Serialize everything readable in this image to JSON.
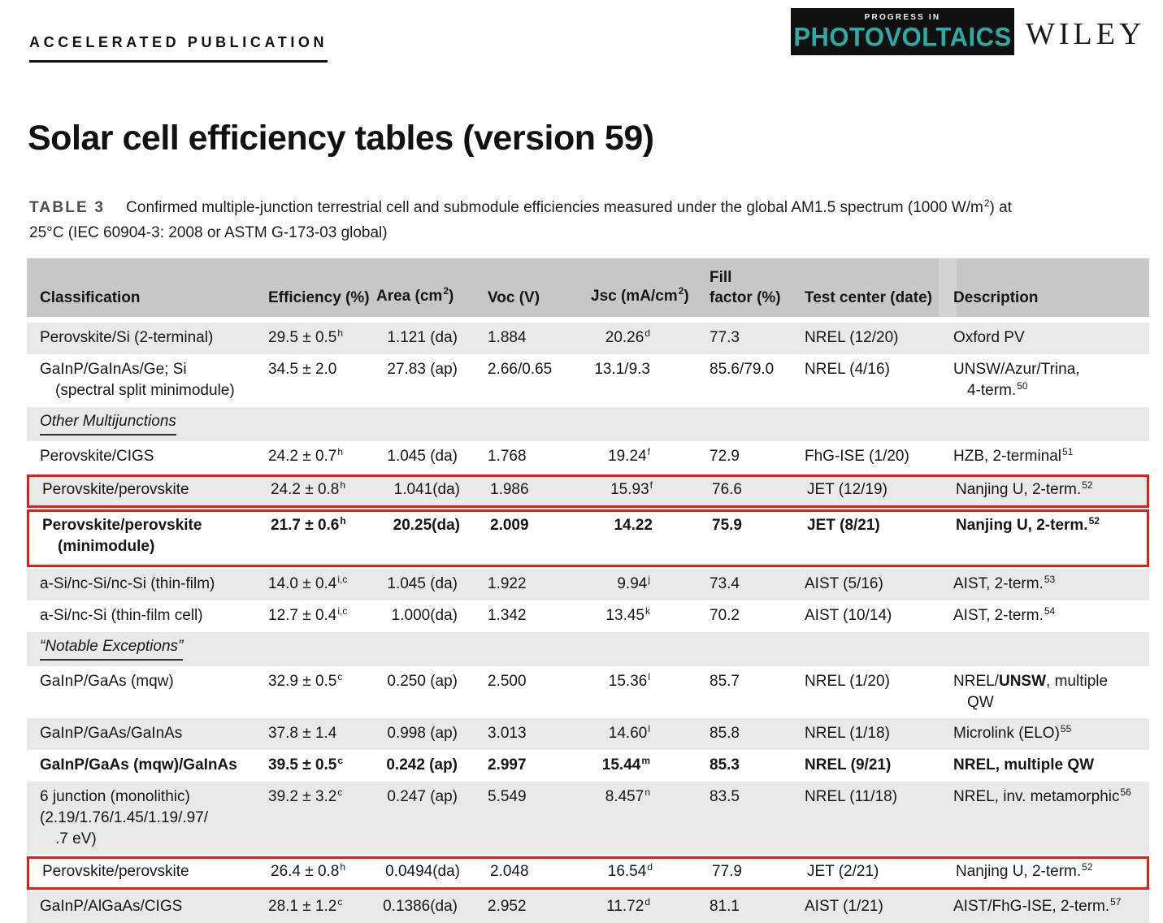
{
  "header": {
    "kicker": "ACCELERATED PUBLICATION",
    "journal_logo": {
      "top": "PROGRESS IN",
      "main": "PHOTOVOLTAICS"
    },
    "publisher": "WILEY",
    "title": "Solar cell efficiency tables (version 59)"
  },
  "caption": {
    "label": "TABLE 3",
    "line1": [
      {
        "t": "Confirmed multiple-junction terrestrial cell and submodule efficiencies measured under the global AM1.5 spectrum (1000 W/m"
      },
      {
        "s": "2"
      },
      {
        "t": ") at"
      }
    ],
    "line2": "25°C (IEC 60904-3: 2008 or ASTM G-173-03 global)"
  },
  "colors": {
    "accent_red": "#de2117",
    "header_bg": "#c7c7c7",
    "row_shade": "#e9e9e9",
    "logo_bg": "#101010",
    "logo_teal": "#2fa9a4"
  },
  "table": {
    "columns": [
      {
        "segs": [
          {
            "t": "Classification"
          }
        ]
      },
      {
        "segs": [
          {
            "t": "Efficiency (%)"
          }
        ]
      },
      {
        "segs": [
          {
            "t": "Area (cm"
          },
          {
            "s": "2"
          },
          {
            "t": ")"
          }
        ]
      },
      {
        "segs": [
          {
            "t": "Voc (V)"
          }
        ]
      },
      {
        "segs": [
          {
            "t": "Jsc (mA/cm"
          },
          {
            "s": "2"
          },
          {
            "t": ")"
          }
        ]
      },
      {
        "lines": [
          [
            {
              "t": "Fill"
            }
          ],
          [
            {
              "t": "factor (%)"
            }
          ]
        ]
      },
      {
        "segs": [
          {
            "t": "Test center (date)"
          }
        ]
      },
      {
        "segs": [
          {
            "t": "Description"
          }
        ]
      }
    ],
    "rows": [
      {
        "shaded": true,
        "classification": [
          {
            "t": "Perovskite/Si (2-terminal)"
          }
        ],
        "efficiency": [
          {
            "t": "29.5 ± 0.5"
          },
          {
            "s": "h"
          }
        ],
        "area": "1.121 (da)",
        "voc": "1.884",
        "jsc": [
          {
            "t": "20.26"
          },
          {
            "s": "d"
          }
        ],
        "ff": "77.3",
        "center": "NREL (12/20)",
        "description": [
          {
            "segs": [
              {
                "t": "Oxford PV"
              }
            ]
          }
        ]
      },
      {
        "shaded": false,
        "classification": [
          {
            "t": "GaInP/GaInAs/Ge; Si"
          },
          {
            "t": "(spectral split minimodule)",
            "indent": true
          }
        ],
        "efficiency": [
          {
            "t": "34.5 ± 2.0"
          }
        ],
        "area": "27.83 (ap)",
        "voc": "2.66/0.65",
        "jsc": [
          {
            "t": "13.1/9.3"
          }
        ],
        "ff": "85.6/79.0",
        "center": "NREL (4/16)",
        "description": [
          {
            "segs": [
              {
                "t": "UNSW/Azur/Trina,"
              }
            ]
          },
          {
            "segs": [
              {
                "t": "4-term."
              },
              {
                "s": "50"
              }
            ],
            "indent": true
          }
        ]
      },
      {
        "section": "Other Multijunctions",
        "shaded": true
      },
      {
        "shaded": false,
        "classification": [
          {
            "t": "Perovskite/CIGS"
          }
        ],
        "efficiency": [
          {
            "t": "24.2 ± 0.7"
          },
          {
            "s": "h"
          }
        ],
        "area": "1.045 (da)",
        "voc": "1.768",
        "jsc": [
          {
            "t": "19.24"
          },
          {
            "s": "f"
          }
        ],
        "ff": "72.9",
        "center": "FhG-ISE (1/20)",
        "description": [
          {
            "segs": [
              {
                "t": "HZB, 2-terminal"
              },
              {
                "s": "51"
              }
            ]
          }
        ]
      },
      {
        "shaded": true,
        "redbox": true,
        "classification": [
          {
            "t": "Perovskite/perovskite"
          }
        ],
        "efficiency": [
          {
            "t": "24.2 ± 0.8"
          },
          {
            "s": "h"
          }
        ],
        "area": "1.041(da)",
        "voc": "1.986",
        "jsc": [
          {
            "t": "15.93"
          },
          {
            "s": "f"
          }
        ],
        "ff": "76.6",
        "center": "JET (12/19)",
        "description": [
          {
            "segs": [
              {
                "t": "Nanjing U, 2-term."
              },
              {
                "s": "52"
              }
            ]
          }
        ]
      },
      {
        "shaded": false,
        "redbox": true,
        "bold": true,
        "classification": [
          {
            "t": "Perovskite/perovskite"
          },
          {
            "t": "(minimodule)",
            "indent": true
          }
        ],
        "efficiency": [
          {
            "t": "21.7 ± 0.6"
          },
          {
            "s": "h"
          }
        ],
        "area": "20.25(da)",
        "voc": "2.009",
        "jsc": [
          {
            "t": "14.22"
          }
        ],
        "ff": "75.9",
        "center": "JET (8/21)",
        "description": [
          {
            "segs": [
              {
                "t": "Nanjing U, 2-term."
              },
              {
                "s": "52"
              }
            ]
          }
        ]
      },
      {
        "shaded": true,
        "classification": [
          {
            "t": "a-Si/nc-Si/nc-Si (thin-film)"
          }
        ],
        "efficiency": [
          {
            "t": "14.0 ± 0.4"
          },
          {
            "s": "i,c"
          }
        ],
        "area": "1.045 (da)",
        "voc": "1.922",
        "jsc": [
          {
            "t": "9.94"
          },
          {
            "s": "j"
          }
        ],
        "ff": "73.4",
        "center": "AIST (5/16)",
        "description": [
          {
            "segs": [
              {
                "t": "AIST, 2-term."
              },
              {
                "s": "53"
              }
            ]
          }
        ]
      },
      {
        "shaded": false,
        "classification": [
          {
            "t": "a-Si/nc-Si (thin-film cell)"
          }
        ],
        "efficiency": [
          {
            "t": "12.7 ± 0.4"
          },
          {
            "s": "i,c"
          }
        ],
        "area": "1.000(da)",
        "voc": "1.342",
        "jsc": [
          {
            "t": "13.45"
          },
          {
            "s": "k"
          }
        ],
        "ff": "70.2",
        "center": "AIST (10/14)",
        "description": [
          {
            "segs": [
              {
                "t": "AIST, 2-term."
              },
              {
                "s": "54"
              }
            ]
          }
        ]
      },
      {
        "section": "“Notable Exceptions”",
        "shaded": true
      },
      {
        "shaded": false,
        "classification": [
          {
            "t": "GaInP/GaAs (mqw)"
          }
        ],
        "efficiency": [
          {
            "t": "32.9 ± 0.5"
          },
          {
            "s": "c"
          }
        ],
        "area": "0.250 (ap)",
        "voc": "2.500",
        "jsc": [
          {
            "t": "15.36"
          },
          {
            "s": "l"
          }
        ],
        "ff": "85.7",
        "center": "NREL (1/20)",
        "description": [
          {
            "segs": [
              {
                "t": "NREL/"
              },
              {
                "t": "UNSW",
                "b": true
              },
              {
                "t": ", multiple"
              }
            ]
          },
          {
            "segs": [
              {
                "t": "QW"
              }
            ],
            "indent": true
          }
        ]
      },
      {
        "shaded": true,
        "classification": [
          {
            "t": "GaInP/GaAs/GaInAs"
          }
        ],
        "efficiency": [
          {
            "t": "37.8 ± 1.4"
          }
        ],
        "area": "0.998 (ap)",
        "voc": "3.013",
        "jsc": [
          {
            "t": "14.60"
          },
          {
            "s": "l"
          }
        ],
        "ff": "85.8",
        "center": "NREL (1/18)",
        "description": [
          {
            "segs": [
              {
                "t": "Microlink (ELO)"
              },
              {
                "s": "55"
              }
            ]
          }
        ]
      },
      {
        "shaded": false,
        "bold": true,
        "classification": [
          {
            "t": "GaInP/GaAs (mqw)/GaInAs"
          }
        ],
        "efficiency": [
          {
            "t": "39.5 ± 0.5"
          },
          {
            "s": "c"
          }
        ],
        "area": "0.242 (ap)",
        "voc": "2.997",
        "jsc": [
          {
            "t": "15.44"
          },
          {
            "s": "m"
          }
        ],
        "ff": "85.3",
        "center": "NREL (9/21)",
        "description": [
          {
            "segs": [
              {
                "t": "NREL, multiple QW"
              }
            ]
          }
        ]
      },
      {
        "shaded": true,
        "classification": [
          {
            "t": "6 junction (monolithic)"
          },
          {
            "t": "(2.19/1.76/1.45/1.19/.97/"
          },
          {
            "t": ".7 eV)",
            "indent": true
          }
        ],
        "efficiency": [
          {
            "t": "39.2 ± 3.2"
          },
          {
            "s": "c"
          }
        ],
        "area": "0.247 (ap)",
        "voc": "5.549",
        "jsc": [
          {
            "t": "8.457"
          },
          {
            "s": "n"
          }
        ],
        "ff": "83.5",
        "center": "NREL (11/18)",
        "description": [
          {
            "segs": [
              {
                "t": "NREL, inv. metamorphic"
              },
              {
                "s": "56"
              }
            ]
          }
        ]
      },
      {
        "shaded": false,
        "redbox": true,
        "classification": [
          {
            "t": "Perovskite/perovskite"
          }
        ],
        "efficiency": [
          {
            "t": "26.4 ± 0.8"
          },
          {
            "s": "h"
          }
        ],
        "area": "0.0494(da)",
        "voc": "2.048",
        "jsc": [
          {
            "t": "16.54"
          },
          {
            "s": "d"
          }
        ],
        "ff": "77.9",
        "center": "JET (2/21)",
        "description": [
          {
            "segs": [
              {
                "t": "Nanjing U, 2-term."
              },
              {
                "s": "52"
              }
            ]
          }
        ]
      },
      {
        "shaded": true,
        "classification": [
          {
            "t": "GaInP/AlGaAs/CIGS"
          }
        ],
        "efficiency": [
          {
            "t": "28.1 ± 1.2"
          },
          {
            "s": "c"
          }
        ],
        "area": "0.1386(da)",
        "voc": "2.952",
        "jsc": [
          {
            "t": "11.72"
          },
          {
            "s": "d"
          }
        ],
        "ff": "81.1",
        "center": "AIST (1/21)",
        "description": [
          {
            "segs": [
              {
                "t": "AIST/FhG-ISE, 2-term."
              },
              {
                "s": "57"
              }
            ]
          }
        ]
      }
    ]
  }
}
